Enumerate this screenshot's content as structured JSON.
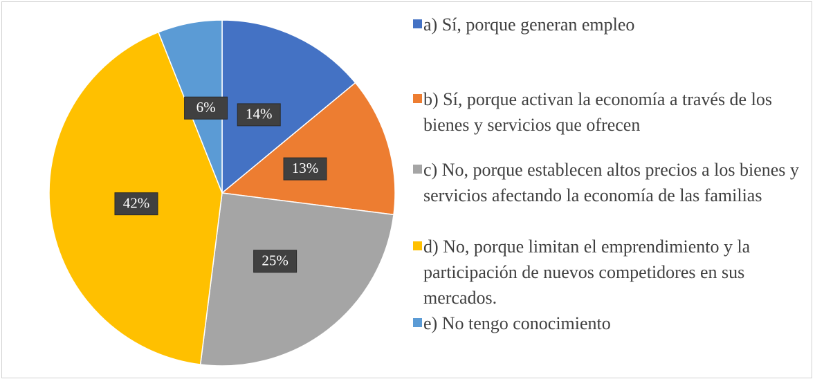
{
  "chart_data": {
    "type": "pie",
    "categories": [
      "a) Sí, porque generan empleo",
      "b) Sí, porque activan la economía a través de los bienes y servicios que ofrecen",
      "c) No, porque establecen altos precios a los bienes y servicios afectando la economía de las familias",
      "d) No, porque limitan el emprendimiento y la participación de nuevos competidores en sus mercados.",
      "e) No tengo conocimiento"
    ],
    "values": [
      14,
      13,
      25,
      42,
      6
    ],
    "value_labels": [
      "14%",
      "13%",
      "25%",
      "42%",
      "6%"
    ],
    "colors": [
      "#4472c4",
      "#ed7d31",
      "#a5a5a5",
      "#ffc000",
      "#5b9bd5"
    ],
    "legend": "right"
  }
}
